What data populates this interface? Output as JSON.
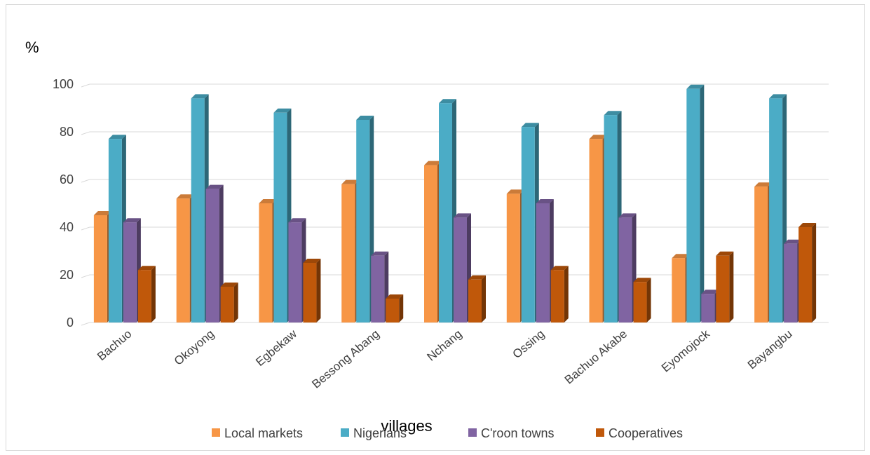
{
  "chart_data": {
    "type": "bar",
    "title": "",
    "ylabel": "%",
    "xlabel": "villages",
    "ylim": [
      0,
      100
    ],
    "yticks": [
      0,
      20,
      40,
      60,
      80,
      100
    ],
    "grid": true,
    "legend_position": "bottom",
    "categories": [
      "Bachuo",
      "Okoyong",
      "Egbekaw",
      "Bessong Abang",
      "Nchang",
      "Ossing",
      "Bachuo Akabe",
      "Eyomojock",
      "Bayangbu"
    ],
    "series": [
      {
        "name": "Local markets",
        "color": "#F79646",
        "values": [
          45,
          52,
          50,
          58,
          66,
          54,
          77,
          27,
          57
        ]
      },
      {
        "name": "Nigerians",
        "color": "#4BACC6",
        "values": [
          77,
          94,
          88,
          85,
          92,
          82,
          87,
          98,
          94
        ]
      },
      {
        "name": "C'roon towns",
        "color": "#8064A2",
        "values": [
          42,
          56,
          42,
          28,
          44,
          50,
          44,
          12,
          33
        ]
      },
      {
        "name": "Cooperatives",
        "color": "#C0580A",
        "values": [
          22,
          15,
          25,
          10,
          18,
          22,
          17,
          28,
          40
        ]
      }
    ]
  }
}
